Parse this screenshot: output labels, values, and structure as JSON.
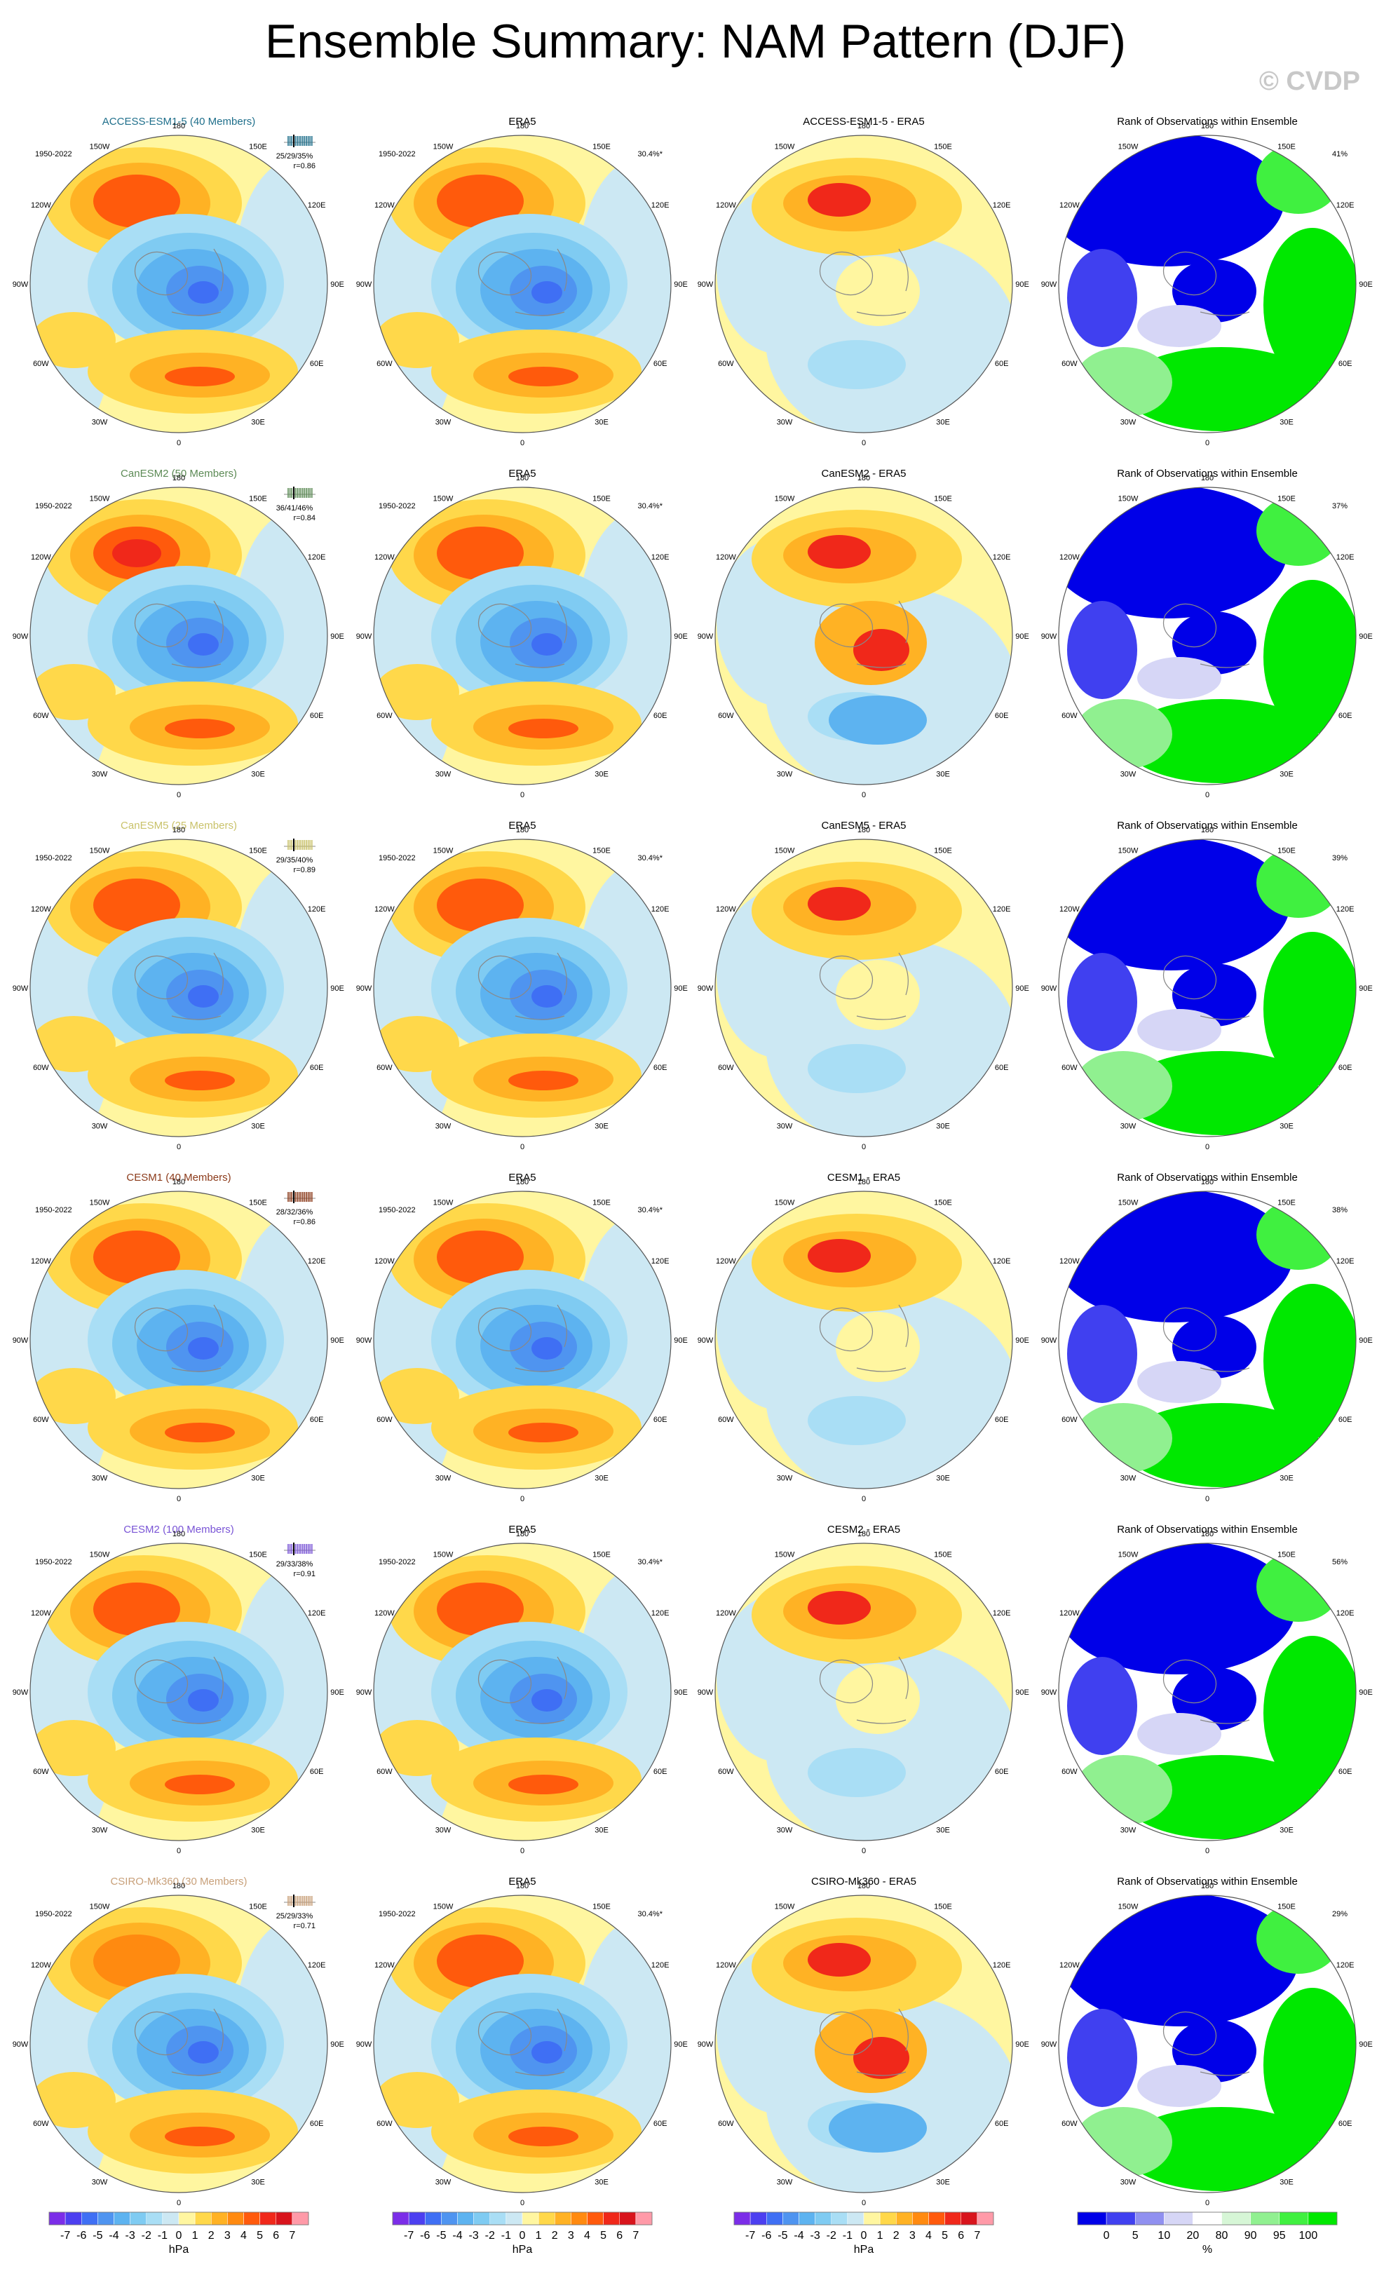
{
  "title": "Ensemble Summary: NAM Pattern (DJF)",
  "watermark": "© CVDP",
  "period": "1950-2022",
  "obs_label": "ERA5",
  "obs_pct": "30.4%*",
  "rank_title": "Rank of Observations within Ensemble",
  "lon_labels": {
    "n": "180",
    "ne": "150E",
    "nw": "150W",
    "e1": "120E",
    "w1": "120W",
    "e2": "90E",
    "w2": "90W",
    "e3": "60E",
    "w3": "60W",
    "se": "30E",
    "sw": "30W",
    "s": "0"
  },
  "rows": [
    {
      "model": "ACCESS-ESM1-5 (40 Members)",
      "color": "#1f6f8b",
      "stats": "25/29/35%",
      "r": "r=0.86",
      "diff": "ACCESS-ESM1-5 - ERA5",
      "rank_pct": "41%"
    },
    {
      "model": "CanESM2 (50 Members)",
      "color": "#5c8a55",
      "stats": "36/41/46%",
      "r": "r=0.84",
      "diff": "CanESM2 - ERA5",
      "rank_pct": "37%"
    },
    {
      "model": "CanESM5 (25 Members)",
      "color": "#c9c26a",
      "stats": "29/35/40%",
      "r": "r=0.89",
      "diff": "CanESM5 - ERA5",
      "rank_pct": "39%"
    },
    {
      "model": "CESM1 (40 Members)",
      "color": "#8b3a1a",
      "stats": "28/32/36%",
      "r": "r=0.86",
      "diff": "CESM1 - ERA5",
      "rank_pct": "38%"
    },
    {
      "model": "CESM2 (100 Members)",
      "color": "#7a55d6",
      "stats": "29/33/38%",
      "r": "r=0.91",
      "diff": "CESM2 - ERA5",
      "rank_pct": "56%"
    },
    {
      "model": "CSIRO-Mk360 (30 Members)",
      "color": "#c8a07a",
      "stats": "25/29/33%",
      "r": "r=0.71",
      "diff": "CSIRO-Mk360 - ERA5",
      "rank_pct": "29%"
    }
  ],
  "colorbar": {
    "ticks": [
      "-7",
      "-6",
      "-5",
      "-4",
      "-3",
      "-2",
      "-1",
      "0",
      "1",
      "2",
      "3",
      "4",
      "5",
      "6",
      "7"
    ],
    "unit": "hPa",
    "colors": [
      "#7b2de8",
      "#4c3ff0",
      "#3f6ff4",
      "#4f94f0",
      "#5db3f0",
      "#7fcbf2",
      "#a9def5",
      "#cce8f3",
      "#fff6a0",
      "#ffd84a",
      "#ffb224",
      "#ff8a10",
      "#ff5a0c",
      "#f0281a",
      "#d8141c",
      "#ff9aa8"
    ]
  },
  "rank_colorbar": {
    "ticks": [
      "0",
      "5",
      "10",
      "20",
      "80",
      "90",
      "95",
      "100"
    ],
    "unit": "%",
    "colors": [
      "#0000e8",
      "#4040f0",
      "#9090f0",
      "#d6d6f6",
      "#ffffff",
      "#d6f6d6",
      "#90f090",
      "#40f040",
      "#00e800"
    ]
  },
  "colors": {
    "land_contour": "#888888"
  }
}
